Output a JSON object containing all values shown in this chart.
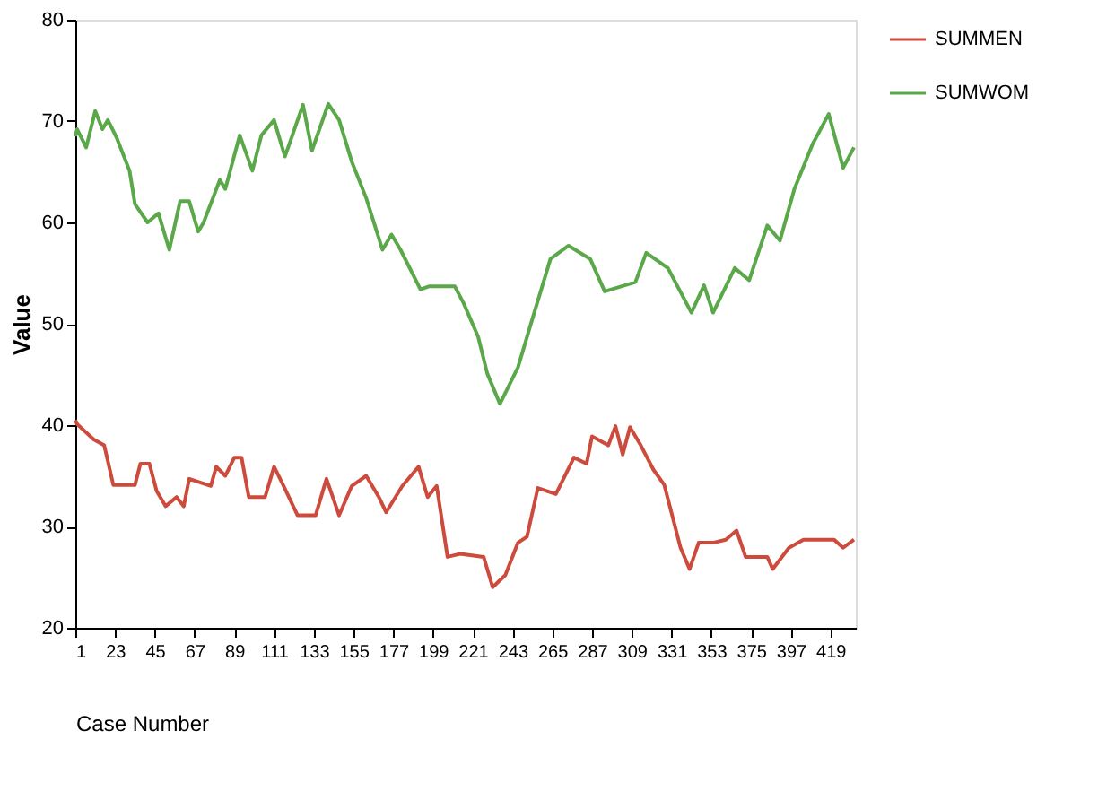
{
  "chart_data": {
    "type": "line",
    "xlabel": "Case Number",
    "ylabel": "Value",
    "xlim": [
      1,
      433
    ],
    "ylim": [
      20,
      80
    ],
    "xticks": [
      1,
      23,
      45,
      67,
      89,
      111,
      133,
      155,
      177,
      199,
      221,
      243,
      265,
      287,
      309,
      331,
      353,
      375,
      397,
      419
    ],
    "yticks": [
      20,
      30,
      40,
      50,
      60,
      70,
      80
    ],
    "grid": false,
    "legend": "right",
    "marker": "none",
    "line_style": "solid",
    "series": [
      {
        "name": "SUMMEN",
        "color": "#cc4b3c",
        "x": [
          1,
          2,
          11,
          17,
          22,
          34,
          37,
          42,
          46,
          51,
          57,
          61,
          64,
          76,
          79,
          84,
          89,
          93,
          97,
          106,
          111,
          116,
          124,
          134,
          140,
          147,
          154,
          162,
          169,
          173,
          182,
          191,
          196,
          201,
          207,
          214,
          227,
          232,
          239,
          246,
          251,
          257,
          267,
          277,
          284,
          287,
          296,
          300,
          304,
          308,
          314,
          321,
          327,
          336,
          341,
          346,
          354,
          361,
          367,
          372,
          384,
          387,
          396,
          404,
          421,
          426,
          432
        ],
        "values": [
          40.5,
          40.1,
          38.6,
          38.0,
          34.1,
          34.1,
          36.2,
          36.2,
          33.5,
          32.0,
          32.9,
          32.0,
          34.7,
          34.0,
          35.9,
          35.0,
          36.8,
          36.8,
          32.9,
          32.9,
          35.9,
          34.1,
          31.1,
          31.1,
          34.7,
          31.1,
          34.0,
          35.0,
          32.9,
          31.4,
          34.0,
          35.9,
          32.9,
          34.0,
          27.0,
          27.3,
          27.0,
          24.0,
          25.2,
          28.4,
          29.0,
          33.8,
          33.2,
          36.8,
          36.2,
          38.9,
          38.0,
          39.9,
          37.1,
          39.8,
          38.0,
          35.6,
          34.1,
          27.9,
          25.8,
          28.4,
          28.4,
          28.7,
          29.6,
          27.0,
          27.0,
          25.8,
          27.9,
          28.7,
          28.7,
          27.9,
          28.7
        ]
      },
      {
        "name": "SUMWOM",
        "color": "#5aa84a",
        "x": [
          1,
          2,
          7,
          12,
          16,
          19,
          24,
          31,
          34,
          41,
          47,
          53,
          59,
          64,
          69,
          72,
          81,
          84,
          92,
          99,
          104,
          111,
          117,
          127,
          132,
          141,
          147,
          154,
          162,
          171,
          176,
          181,
          192,
          197,
          211,
          216,
          224,
          229,
          236,
          246,
          254,
          264,
          274,
          286,
          294,
          311,
          317,
          329,
          342,
          349,
          354,
          366,
          374,
          384,
          391,
          399,
          409,
          418,
          426,
          432
        ],
        "values": [
          68.5,
          69.2,
          67.4,
          71.0,
          69.2,
          70.1,
          68.3,
          65.1,
          61.8,
          60.0,
          60.9,
          57.3,
          62.1,
          62.1,
          59.1,
          60.0,
          64.2,
          63.3,
          68.6,
          65.1,
          68.6,
          70.1,
          66.5,
          71.6,
          67.1,
          71.7,
          70.1,
          66.0,
          62.4,
          57.3,
          58.8,
          57.3,
          53.4,
          53.7,
          53.7,
          52.0,
          48.7,
          45.1,
          42.1,
          45.7,
          50.5,
          56.4,
          57.7,
          56.4,
          53.2,
          54.1,
          57.0,
          55.5,
          51.1,
          53.8,
          51.1,
          55.5,
          54.3,
          59.7,
          58.2,
          63.3,
          67.7,
          70.7,
          65.4,
          67.4
        ]
      }
    ]
  }
}
